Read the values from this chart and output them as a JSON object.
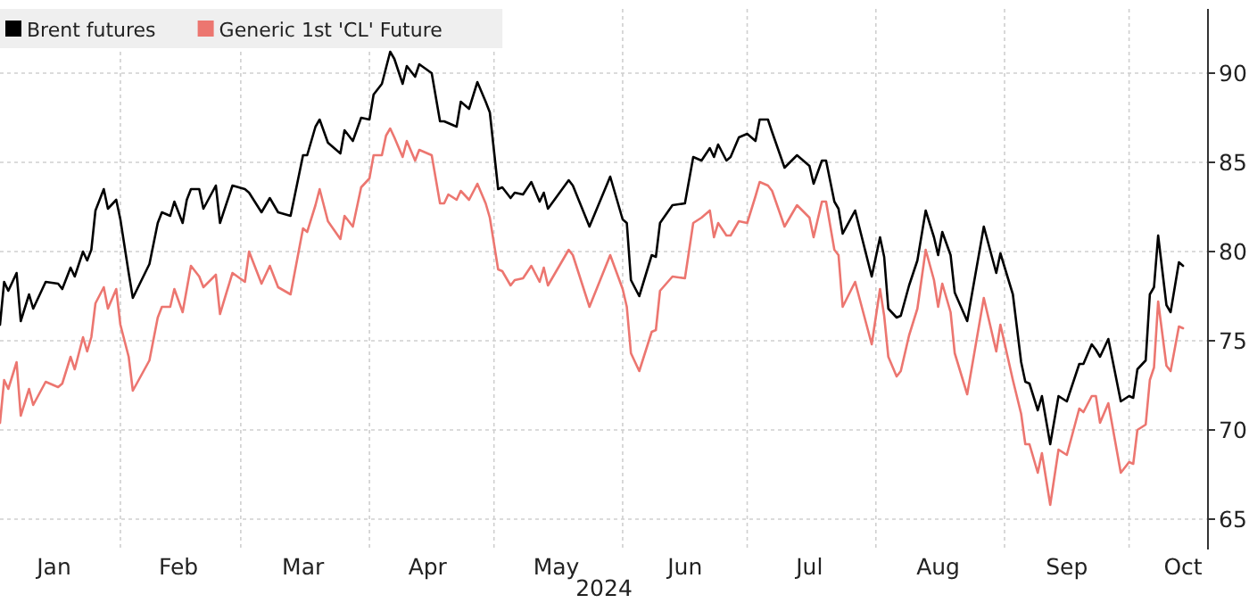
{
  "chart_data": {
    "type": "line",
    "xlabel": "2024",
    "legend": "top left",
    "grid": true,
    "marker": "none",
    "line_style": "solid",
    "xlim": [
      "2024-01-03",
      "2024-10-20"
    ],
    "xticks": [
      {
        "value": "2024-01-16",
        "label": "Jan"
      },
      {
        "value": "2024-02-01",
        "label": null
      },
      {
        "value": "2024-02-15",
        "label": "Feb"
      },
      {
        "value": "2024-03-01",
        "label": null
      },
      {
        "value": "2024-03-16",
        "label": "Mar"
      },
      {
        "value": "2024-04-01",
        "label": null
      },
      {
        "value": "2024-04-15",
        "label": "Apr"
      },
      {
        "value": "2024-05-01",
        "label": null
      },
      {
        "value": "2024-05-16",
        "label": "May"
      },
      {
        "value": "2024-06-01",
        "label": null
      },
      {
        "value": "2024-06-16",
        "label": "Jun"
      },
      {
        "value": "2024-07-01",
        "label": null
      },
      {
        "value": "2024-07-16",
        "label": "Jul"
      },
      {
        "value": "2024-08-01",
        "label": null
      },
      {
        "value": "2024-08-16",
        "label": "Aug"
      },
      {
        "value": "2024-09-01",
        "label": null
      },
      {
        "value": "2024-09-16",
        "label": "Sep"
      },
      {
        "value": "2024-10-01",
        "label": null
      },
      {
        "value": "2024-10-14",
        "label": "Oct"
      }
    ],
    "ylim": [
      63.3,
      93.6
    ],
    "yticks": [
      65,
      70,
      75,
      80,
      85,
      90
    ],
    "x": [
      "2024-01-03",
      "2024-01-04",
      "2024-01-05",
      "2024-01-07",
      "2024-01-08",
      "2024-01-10",
      "2024-01-11",
      "2024-01-14",
      "2024-01-17",
      "2024-01-18",
      "2024-01-20",
      "2024-01-21",
      "2024-01-23",
      "2024-01-24",
      "2024-01-25",
      "2024-01-26",
      "2024-01-28",
      "2024-01-29",
      "2024-01-31",
      "2024-02-01",
      "2024-02-03",
      "2024-02-04",
      "2024-02-08",
      "2024-02-10",
      "2024-02-11",
      "2024-02-13",
      "2024-02-14",
      "2024-02-16",
      "2024-02-17",
      "2024-02-18",
      "2024-02-20",
      "2024-02-21",
      "2024-02-24",
      "2024-02-25",
      "2024-02-28",
      "2024-03-02",
      "2024-03-03",
      "2024-03-06",
      "2024-03-08",
      "2024-03-10",
      "2024-03-13",
      "2024-03-16",
      "2024-03-17",
      "2024-03-19",
      "2024-03-20",
      "2024-03-22",
      "2024-03-25",
      "2024-03-26",
      "2024-03-28",
      "2024-03-30",
      "2024-04-01",
      "2024-04-02",
      "2024-04-04",
      "2024-04-05",
      "2024-04-06",
      "2024-04-07",
      "2024-04-09",
      "2024-04-10",
      "2024-04-12",
      "2024-04-13",
      "2024-04-16",
      "2024-04-18",
      "2024-04-19",
      "2024-04-20",
      "2024-04-22",
      "2024-04-23",
      "2024-04-25",
      "2024-04-27",
      "2024-04-29",
      "2024-04-30",
      "2024-05-02",
      "2024-05-03",
      "2024-05-05",
      "2024-05-06",
      "2024-05-08",
      "2024-05-10",
      "2024-05-12",
      "2024-05-13",
      "2024-05-14",
      "2024-05-19",
      "2024-05-20",
      "2024-05-24",
      "2024-05-29",
      "2024-06-01",
      "2024-06-02",
      "2024-06-03",
      "2024-06-05",
      "2024-06-08",
      "2024-06-09",
      "2024-06-10",
      "2024-06-13",
      "2024-06-16",
      "2024-06-18",
      "2024-06-20",
      "2024-06-22",
      "2024-06-23",
      "2024-06-24",
      "2024-06-26",
      "2024-06-27",
      "2024-06-29",
      "2024-07-01",
      "2024-07-03",
      "2024-07-04",
      "2024-07-06",
      "2024-07-07",
      "2024-07-10",
      "2024-07-13",
      "2024-07-16",
      "2024-07-17",
      "2024-07-19",
      "2024-07-20",
      "2024-07-22",
      "2024-07-23",
      "2024-07-24",
      "2024-07-27",
      "2024-07-31",
      "2024-08-02",
      "2024-08-03",
      "2024-08-04",
      "2024-08-06",
      "2024-08-07",
      "2024-08-09",
      "2024-08-11",
      "2024-08-13",
      "2024-08-15",
      "2024-08-16",
      "2024-08-17",
      "2024-08-19",
      "2024-08-20",
      "2024-08-23",
      "2024-08-27",
      "2024-08-30",
      "2024-08-31",
      "2024-09-03",
      "2024-09-05",
      "2024-09-06",
      "2024-09-07",
      "2024-09-09",
      "2024-09-10",
      "2024-09-12",
      "2024-09-14",
      "2024-09-16",
      "2024-09-19",
      "2024-09-20",
      "2024-09-22",
      "2024-09-23",
      "2024-09-24",
      "2024-09-26",
      "2024-09-29",
      "2024-10-01",
      "2024-10-02",
      "2024-10-03",
      "2024-10-05",
      "2024-10-06",
      "2024-10-07",
      "2024-10-08",
      "2024-10-10",
      "2024-10-11",
      "2024-10-13",
      "2024-10-14"
    ],
    "series": [
      {
        "name": "Brent futures",
        "color": "#000000",
        "values": [
          75.9,
          78.3,
          77.8,
          78.8,
          76.1,
          77.6,
          76.8,
          78.3,
          78.2,
          77.9,
          79.1,
          78.6,
          80.0,
          79.5,
          80.1,
          82.3,
          83.5,
          82.4,
          82.9,
          81.8,
          78.8,
          77.4,
          79.3,
          81.6,
          82.2,
          82.0,
          82.8,
          81.6,
          82.9,
          83.5,
          83.5,
          82.4,
          83.7,
          81.6,
          83.7,
          83.5,
          83.3,
          82.2,
          83.0,
          82.2,
          82.0,
          85.4,
          85.4,
          87.0,
          87.4,
          86.1,
          85.5,
          86.8,
          86.2,
          87.5,
          87.4,
          88.8,
          89.4,
          90.3,
          91.2,
          90.8,
          89.4,
          90.4,
          89.8,
          90.5,
          90.0,
          87.3,
          87.3,
          87.2,
          87.0,
          88.4,
          88.0,
          89.5,
          88.4,
          87.8,
          83.5,
          83.6,
          83.0,
          83.3,
          83.2,
          83.9,
          82.8,
          83.3,
          82.4,
          84.0,
          83.7,
          81.4,
          84.2,
          81.8,
          81.6,
          78.4,
          77.5,
          79.8,
          79.7,
          81.6,
          82.6,
          82.7,
          85.3,
          85.1,
          85.8,
          85.3,
          86.0,
          85.1,
          85.3,
          86.4,
          86.6,
          86.2,
          87.4,
          87.4,
          86.7,
          84.7,
          85.4,
          84.8,
          83.8,
          85.1,
          85.1,
          82.8,
          82.4,
          81.0,
          82.3,
          78.6,
          80.8,
          79.7,
          76.8,
          76.3,
          76.4,
          78.1,
          79.5,
          82.3,
          80.8,
          79.8,
          81.1,
          79.8,
          77.7,
          76.1,
          81.4,
          78.8,
          79.9,
          77.6,
          73.8,
          72.7,
          72.6,
          71.1,
          71.9,
          69.2,
          71.9,
          71.6,
          73.7,
          73.7,
          74.8,
          74.5,
          74.1,
          75.1,
          71.6,
          71.9,
          71.8,
          73.4,
          73.9,
          77.6,
          78.0,
          80.9,
          77.0,
          76.6,
          79.4,
          79.2
        ]
      },
      {
        "name": "Generic 1st 'CL' Future",
        "color": "#ec7670",
        "values": [
          70.4,
          72.8,
          72.3,
          73.8,
          70.8,
          72.3,
          71.4,
          72.7,
          72.4,
          72.6,
          74.1,
          73.4,
          75.2,
          74.4,
          75.2,
          77.1,
          78.0,
          76.8,
          77.9,
          75.9,
          74.1,
          72.2,
          73.9,
          76.3,
          76.9,
          76.9,
          77.9,
          76.6,
          77.9,
          79.2,
          78.6,
          78.0,
          78.7,
          76.5,
          78.8,
          78.3,
          80.0,
          78.2,
          79.2,
          78.0,
          77.6,
          81.3,
          81.1,
          82.6,
          83.5,
          81.7,
          80.7,
          82.0,
          81.4,
          83.6,
          84.1,
          85.4,
          85.4,
          86.5,
          86.9,
          86.4,
          85.3,
          86.2,
          85.1,
          85.7,
          85.4,
          82.7,
          82.7,
          83.2,
          82.9,
          83.4,
          82.9,
          83.8,
          82.7,
          81.9,
          79.0,
          78.9,
          78.1,
          78.4,
          78.5,
          79.2,
          78.3,
          79.1,
          78.1,
          80.1,
          79.8,
          76.9,
          79.8,
          77.9,
          76.9,
          74.3,
          73.3,
          75.5,
          75.6,
          77.8,
          78.6,
          78.5,
          81.6,
          81.9,
          82.3,
          80.8,
          81.6,
          80.9,
          80.9,
          81.7,
          81.6,
          83.1,
          83.9,
          83.7,
          83.4,
          81.4,
          82.6,
          81.9,
          80.8,
          82.8,
          82.8,
          80.1,
          79.8,
          76.9,
          78.3,
          74.8,
          77.9,
          76.4,
          74.1,
          73.0,
          73.3,
          75.3,
          76.8,
          80.1,
          78.4,
          76.9,
          78.2,
          76.6,
          74.3,
          72.0,
          77.4,
          74.4,
          75.9,
          72.8,
          70.9,
          69.2,
          69.2,
          67.6,
          68.7,
          65.8,
          68.9,
          68.6,
          71.2,
          71.0,
          71.9,
          71.9,
          70.4,
          71.5,
          67.6,
          68.2,
          68.1,
          70.0,
          70.3,
          72.8,
          73.5,
          77.2,
          73.6,
          73.3,
          75.8,
          75.7
        ]
      }
    ]
  }
}
